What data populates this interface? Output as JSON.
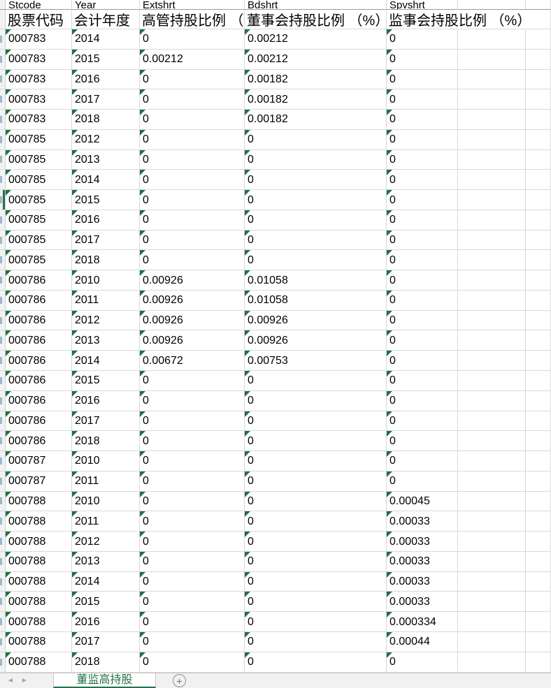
{
  "columns_en": [
    "Stcode",
    "Year",
    "Extshrt",
    "Bdshrt",
    "Spvshrt"
  ],
  "columns_zh": [
    "股票代码",
    "会计年度",
    "高管持股比例 （%）",
    "董事会持股比例 （%）",
    "监事会持股比例 （%）"
  ],
  "rows": [
    [
      "000783",
      "2014",
      "0",
      "0.00212",
      "0"
    ],
    [
      "000783",
      "2015",
      "0.00212",
      "0.00212",
      "0"
    ],
    [
      "000783",
      "2016",
      "0",
      "0.00182",
      "0"
    ],
    [
      "000783",
      "2017",
      "0",
      "0.00182",
      "0"
    ],
    [
      "000783",
      "2018",
      "0",
      "0.00182",
      "0"
    ],
    [
      "000785",
      "2012",
      "0",
      "0",
      "0"
    ],
    [
      "000785",
      "2013",
      "0",
      "0",
      "0"
    ],
    [
      "000785",
      "2014",
      "0",
      "0",
      "0"
    ],
    [
      "000785",
      "2015",
      "0",
      "0",
      "0"
    ],
    [
      "000785",
      "2016",
      "0",
      "0",
      "0"
    ],
    [
      "000785",
      "2017",
      "0",
      "0",
      "0"
    ],
    [
      "000785",
      "2018",
      "0",
      "0",
      "0"
    ],
    [
      "000786",
      "2010",
      "0.00926",
      "0.01058",
      "0"
    ],
    [
      "000786",
      "2011",
      "0.00926",
      "0.01058",
      "0"
    ],
    [
      "000786",
      "2012",
      "0.00926",
      "0.00926",
      "0"
    ],
    [
      "000786",
      "2013",
      "0.00926",
      "0.00926",
      "0"
    ],
    [
      "000786",
      "2014",
      "0.00672",
      "0.00753",
      "0"
    ],
    [
      "000786",
      "2015",
      "0",
      "0",
      "0"
    ],
    [
      "000786",
      "2016",
      "0",
      "0",
      "0"
    ],
    [
      "000786",
      "2017",
      "0",
      "0",
      "0"
    ],
    [
      "000786",
      "2018",
      "0",
      "0",
      "0"
    ],
    [
      "000787",
      "2010",
      "0",
      "0",
      "0"
    ],
    [
      "000787",
      "2011",
      "0",
      "0",
      "0"
    ],
    [
      "000788",
      "2010",
      "0",
      "0",
      "0.00045"
    ],
    [
      "000788",
      "2011",
      "0",
      "0",
      "0.00033"
    ],
    [
      "000788",
      "2012",
      "0",
      "0",
      "0.00033"
    ],
    [
      "000788",
      "2013",
      "0",
      "0",
      "0.00033"
    ],
    [
      "000788",
      "2014",
      "0",
      "0",
      "0.00033"
    ],
    [
      "000788",
      "2015",
      "0",
      "0",
      "0.00033"
    ],
    [
      "000788",
      "2016",
      "0",
      "0",
      "0.000334"
    ],
    [
      "000788",
      "2017",
      "0",
      "0",
      "0.00044"
    ],
    [
      "000788",
      "2018",
      "0",
      "0",
      "0"
    ]
  ],
  "selected_row_index": 8,
  "tabbar": {
    "sheet_tab": "董监高持股",
    "prev_icon": "◄",
    "next_icon": "►",
    "add_icon": "+"
  },
  "colors": {
    "excel_green": "#217346",
    "error_triangle_green": "#1e7145",
    "gridline": "#d9d9d9"
  }
}
